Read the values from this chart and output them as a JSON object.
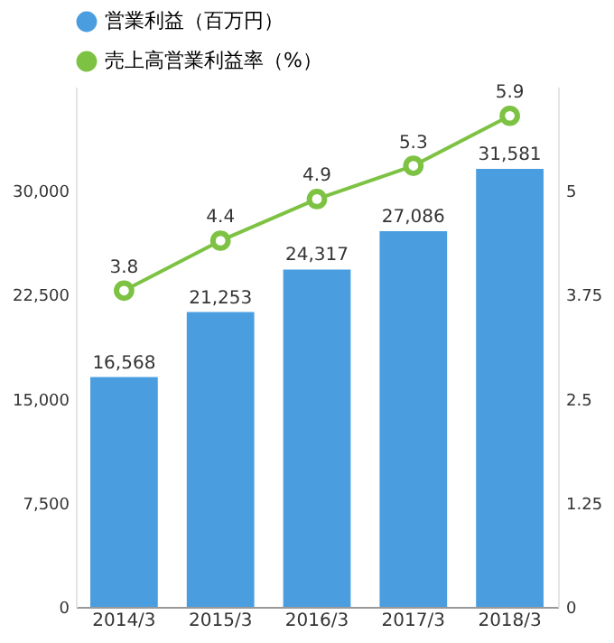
{
  "chart_data": {
    "type": "bar",
    "categories": [
      "2014/3",
      "2015/3",
      "2016/3",
      "2017/3",
      "2018/3"
    ],
    "series": [
      {
        "name": "営業利益（百万円）",
        "color": "#4a9ee0",
        "values": [
          16568,
          21253,
          24317,
          27086,
          31581
        ],
        "value_labels": [
          "16,568",
          "21,253",
          "24,317",
          "27,086",
          "31,581"
        ]
      },
      {
        "name": "売上高営業利益率（%）",
        "type": "line",
        "axis": "y2",
        "color": "#7dc243",
        "values": [
          3.8,
          4.4,
          4.9,
          5.3,
          5.9
        ]
      }
    ],
    "ylim": [
      0,
      37500
    ],
    "yticks": [
      0,
      {
        "value": 7500,
        "label": "7,500"
      },
      {
        "value": 15000,
        "label": "15,000"
      },
      {
        "value": 22500,
        "label": "22,500"
      },
      {
        "value": 30000,
        "label": "30,000"
      }
    ],
    "y2lim": [
      0,
      6.25
    ],
    "y2ticks": [
      0,
      {
        "value": 1.25,
        "label": "1.25"
      },
      {
        "value": 2.5,
        "label": "2.5"
      },
      {
        "value": 3.75,
        "label": "3.75"
      },
      5
    ],
    "data_labels": true,
    "grid": false,
    "legend": "top left",
    "marker": "circle",
    "line_style": "solid"
  }
}
